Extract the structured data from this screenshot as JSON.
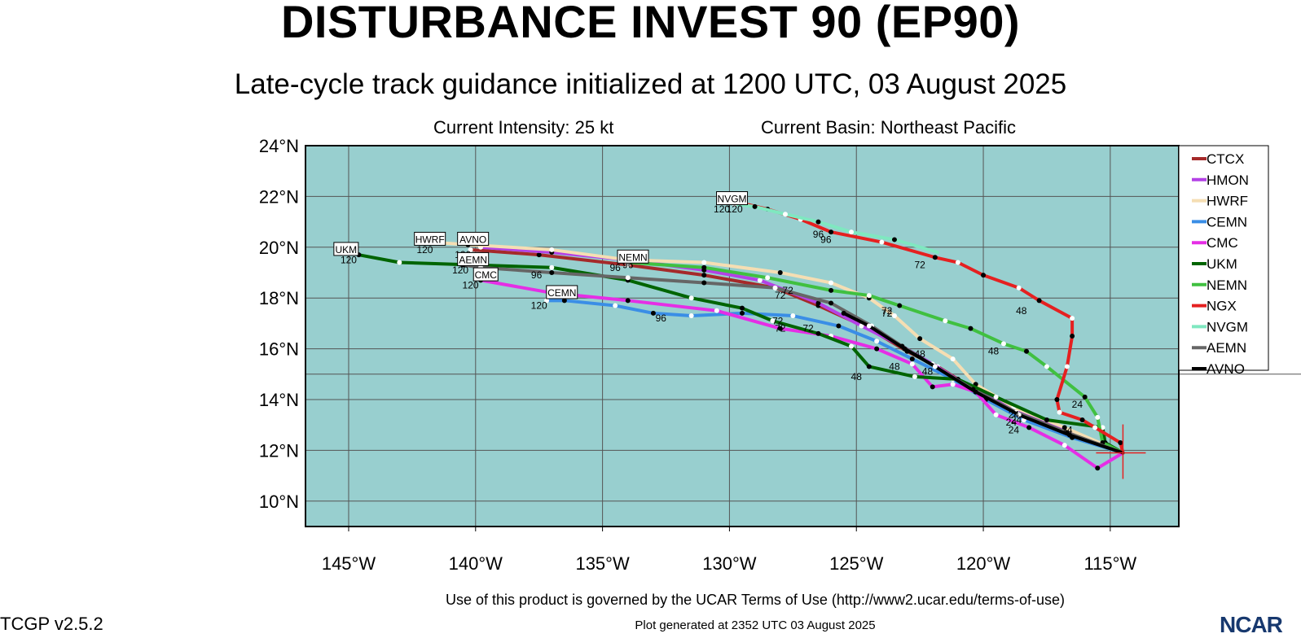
{
  "header": {
    "title": "DISTURBANCE INVEST 90 (EP90)",
    "subtitle": "Late-cycle track guidance initialized at 1200 UTC, 03 August 2025",
    "intensity": "Current Intensity: 25 kt",
    "basin": "Current Basin: Northeast Pacific"
  },
  "footer": {
    "terms": "Use of this product is governed by the UCAR Terms of Use (http://www2.ucar.edu/terms-of-use)",
    "generated": "Plot generated at 2352 UTC   03 August 2025",
    "version": "TCGP v2.5.2",
    "logo": "NCAR"
  },
  "colors": {
    "ocean": "#98cfcf",
    "grid": "#555555"
  },
  "chart_data": {
    "type": "line",
    "xlim": [
      -146.7,
      -112.3
    ],
    "ylim": [
      9,
      24
    ],
    "lon_ticks": [
      {
        "v": -145,
        "label": "145°W"
      },
      {
        "v": -140,
        "label": "140°W"
      },
      {
        "v": -135,
        "label": "135°W"
      },
      {
        "v": -130,
        "label": "130°W"
      },
      {
        "v": -125,
        "label": "125°W"
      },
      {
        "v": -120,
        "label": "120°W"
      },
      {
        "v": -115,
        "label": "115°W"
      }
    ],
    "lat_ticks": [
      {
        "v": 10,
        "label": "10°N"
      },
      {
        "v": 12,
        "label": "12°N"
      },
      {
        "v": 14,
        "label": "14°N"
      },
      {
        "v": 16,
        "label": "16°N"
      },
      {
        "v": 18,
        "label": "18°N"
      },
      {
        "v": 20,
        "label": "20°N"
      },
      {
        "v": 22,
        "label": "22°N"
      },
      {
        "v": 24,
        "label": "24°N"
      }
    ],
    "grid": {
      "lon": [
        -145,
        -140,
        -135,
        -130,
        -125,
        -120,
        -115
      ],
      "lat": [
        10,
        12,
        14,
        16,
        18,
        20,
        22,
        24
      ]
    },
    "extra_lat_line": 15,
    "legend_position": "right",
    "initial_position": {
      "lon": -114.5,
      "lat": 11.9
    },
    "series": [
      {
        "name": "CTCX",
        "color": "#a52a2a",
        "track": [
          [
            -114.5,
            11.9
          ],
          [
            -116.5,
            12.6
          ],
          [
            -118.5,
            13.4
          ],
          [
            -120.2,
            14.3
          ],
          [
            -121.8,
            15.3
          ],
          [
            -123,
            15.9
          ],
          [
            -124.5,
            16.8
          ],
          [
            -126.5,
            17.7
          ],
          [
            -128.2,
            18.4
          ],
          [
            -131,
            18.9
          ],
          [
            -134,
            19.3
          ],
          [
            -137.5,
            19.7
          ],
          [
            -140.2,
            19.9
          ]
        ],
        "labels": [
          {
            "t": "24",
            "lon": -118.7,
            "lat": 13.2
          },
          {
            "t": "48",
            "lon": -122.5,
            "lat": 15.8
          },
          {
            "t": "72",
            "lon": -127.7,
            "lat": 18.3
          },
          {
            "t": "96",
            "lon": -134.5,
            "lat": 19.2
          },
          {
            "t": "120",
            "lon": -140.5,
            "lat": 19.7
          }
        ]
      },
      {
        "name": "HMON",
        "color": "#b441e6",
        "track": [
          [
            -114.5,
            11.9
          ],
          [
            -116.8,
            12.8
          ],
          [
            -118.7,
            13.6
          ],
          [
            -120.4,
            14.4
          ],
          [
            -122,
            15.4
          ],
          [
            -123.2,
            16.1
          ],
          [
            -124.8,
            16.9
          ],
          [
            -126.5,
            17.8
          ],
          [
            -128.8,
            18.7
          ],
          [
            -131,
            19.1
          ],
          [
            -134,
            19.5
          ],
          [
            -137,
            19.8
          ],
          [
            -139.8,
            20
          ]
        ],
        "labels": [
          {
            "t": "24",
            "lon": -118.8,
            "lat": 13.4
          },
          {
            "t": "72",
            "lon": -128,
            "lat": 18.1
          },
          {
            "t": "96",
            "lon": -134,
            "lat": 19.3
          }
        ]
      },
      {
        "name": "HWRF",
        "color": "#f5deb3",
        "track": [
          [
            -114.5,
            11.9
          ],
          [
            -116.8,
            12.9
          ],
          [
            -118.8,
            13.7
          ],
          [
            -120.3,
            14.6
          ],
          [
            -121.2,
            15.6
          ],
          [
            -122.5,
            16.4
          ],
          [
            -123.5,
            17.3
          ],
          [
            -124.5,
            18
          ],
          [
            -126,
            18.6
          ],
          [
            -128,
            19
          ],
          [
            -131,
            19.4
          ],
          [
            -134,
            19.5
          ],
          [
            -137,
            19.9
          ],
          [
            -140.3,
            20.1
          ],
          [
            -141.8,
            20.2
          ]
        ],
        "labels": [
          {
            "t": "72",
            "lon": -123.8,
            "lat": 17.5
          },
          {
            "t": "120",
            "lon": -142,
            "lat": 19.9
          }
        ],
        "tag": {
          "t": "HWRF",
          "lon": -141.8,
          "lat": 20.3
        }
      },
      {
        "name": "CEMN",
        "color": "#3a8ee6",
        "track": [
          [
            -114.5,
            11.9
          ],
          [
            -116.5,
            12.5
          ],
          [
            -118.4,
            13.2
          ],
          [
            -119.9,
            14
          ],
          [
            -121.2,
            14.8
          ],
          [
            -122.8,
            15.6
          ],
          [
            -124.2,
            16.3
          ],
          [
            -125.7,
            16.9
          ],
          [
            -127.5,
            17.3
          ],
          [
            -129.5,
            17.4
          ],
          [
            -131.5,
            17.3
          ],
          [
            -133,
            17.4
          ],
          [
            -134.5,
            17.7
          ],
          [
            -136.5,
            17.9
          ],
          [
            -137.2,
            17.9
          ]
        ],
        "labels": [
          {
            "t": "24",
            "lon": -118.9,
            "lat": 13.1
          },
          {
            "t": "48",
            "lon": -123.5,
            "lat": 15.3
          },
          {
            "t": "72",
            "lon": -128.1,
            "lat": 17.1
          },
          {
            "t": "96",
            "lon": -132.7,
            "lat": 17.2
          },
          {
            "t": "120",
            "lon": -137.5,
            "lat": 17.7
          }
        ],
        "tag": {
          "t": "CEMN",
          "lon": -136.6,
          "lat": 18.2
        }
      },
      {
        "name": "CMC",
        "color": "#e52ee5",
        "track": [
          [
            -114.5,
            11.9
          ],
          [
            -115.5,
            11.3
          ],
          [
            -116.8,
            12.2
          ],
          [
            -118.2,
            12.9
          ],
          [
            -119.5,
            13.4
          ],
          [
            -120.3,
            14.3
          ],
          [
            -121.2,
            14.6
          ],
          [
            -122,
            14.5
          ],
          [
            -122.8,
            15.4
          ],
          [
            -124.2,
            16
          ],
          [
            -126,
            16.5
          ],
          [
            -128,
            16.8
          ],
          [
            -130.5,
            17.5
          ],
          [
            -134,
            17.9
          ],
          [
            -137,
            18.2
          ],
          [
            -139.8,
            18.7
          ]
        ],
        "labels": [
          {
            "t": "24",
            "lon": -118.8,
            "lat": 12.8
          },
          {
            "t": "48",
            "lon": -122.2,
            "lat": 15.1
          },
          {
            "t": "72",
            "lon": -126.9,
            "lat": 16.8
          },
          {
            "t": "120",
            "lon": -140.2,
            "lat": 18.5
          }
        ],
        "tag": {
          "t": "CMC",
          "lon": -139.6,
          "lat": 18.9
        }
      },
      {
        "name": "UKM",
        "color": "#006400",
        "track": [
          [
            -114.5,
            11.9
          ],
          [
            -115.2,
            12.3
          ],
          [
            -115.3,
            12.9
          ],
          [
            -117.5,
            13.2
          ],
          [
            -119.5,
            14.1
          ],
          [
            -121,
            14.8
          ],
          [
            -122.7,
            14.9
          ],
          [
            -124.5,
            15.3
          ],
          [
            -125.2,
            16.1
          ],
          [
            -126.5,
            16.6
          ],
          [
            -128.3,
            17.1
          ],
          [
            -129.5,
            17.6
          ],
          [
            -131.5,
            18
          ],
          [
            -134,
            18.7
          ],
          [
            -137,
            19.2
          ],
          [
            -140,
            19.3
          ],
          [
            -143,
            19.4
          ],
          [
            -144.6,
            19.7
          ]
        ],
        "labels": [
          {
            "t": "48",
            "lon": -125,
            "lat": 14.9
          },
          {
            "t": "72",
            "lon": -128,
            "lat": 16.8
          },
          {
            "t": "120",
            "lon": -145,
            "lat": 19.5
          }
        ],
        "tag": {
          "t": "UKM",
          "lon": -145.1,
          "lat": 19.9
        }
      },
      {
        "name": "NEMN",
        "color": "#40c040",
        "track": [
          [
            -114.5,
            11.9
          ],
          [
            -115.3,
            12.3
          ],
          [
            -115.5,
            13.3
          ],
          [
            -116,
            14.1
          ],
          [
            -117.5,
            15.3
          ],
          [
            -118.3,
            15.9
          ],
          [
            -119.2,
            16.2
          ],
          [
            -120.5,
            16.8
          ],
          [
            -121.5,
            17.1
          ],
          [
            -123.3,
            17.7
          ],
          [
            -124.5,
            18.1
          ],
          [
            -126,
            18.3
          ],
          [
            -128.5,
            18.8
          ],
          [
            -131,
            19.2
          ],
          [
            -134,
            19.4
          ]
        ],
        "labels": [
          {
            "t": "24",
            "lon": -116.3,
            "lat": 13.8
          },
          {
            "t": "48",
            "lon": -119.6,
            "lat": 15.9
          },
          {
            "t": "72",
            "lon": -123.8,
            "lat": 17.4
          }
        ],
        "tag": {
          "t": "NEMN",
          "lon": -133.8,
          "lat": 19.6
        }
      },
      {
        "name": "NGX",
        "color": "#e52020",
        "track": [
          [
            -114.5,
            11.9
          ],
          [
            -114.6,
            12.3
          ],
          [
            -115.6,
            12.9
          ],
          [
            -116.1,
            13.2
          ],
          [
            -117,
            13.5
          ],
          [
            -117.1,
            14
          ],
          [
            -116.7,
            15.3
          ],
          [
            -116.5,
            16.5
          ],
          [
            -116.5,
            17.2
          ],
          [
            -117.8,
            17.9
          ],
          [
            -118.6,
            18.4
          ],
          [
            -120,
            18.9
          ],
          [
            -121,
            19.4
          ],
          [
            -121.9,
            19.6
          ],
          [
            -124,
            20.2
          ],
          [
            -126,
            20.6
          ],
          [
            -127.2,
            21.1
          ],
          [
            -128.5,
            21.5
          ],
          [
            -129.8,
            21.8
          ]
        ],
        "labels": [
          {
            "t": "24",
            "lon": -116.7,
            "lat": 12.8
          },
          {
            "t": "48",
            "lon": -118.5,
            "lat": 17.5
          },
          {
            "t": "72",
            "lon": -122.5,
            "lat": 19.3
          },
          {
            "t": "96",
            "lon": -126.2,
            "lat": 20.3
          },
          {
            "t": "120",
            "lon": -130.3,
            "lat": 21.5
          }
        ]
      },
      {
        "name": "NVGM",
        "color": "#7fe8c0",
        "track": [
          [
            -121.8,
            19.8
          ],
          [
            -123.5,
            20.3
          ],
          [
            -125.2,
            20.6
          ],
          [
            -126.5,
            21
          ],
          [
            -127.8,
            21.3
          ],
          [
            -129,
            21.6
          ],
          [
            -129.8,
            21.7
          ]
        ],
        "labels": [
          {
            "t": "96",
            "lon": -126.5,
            "lat": 20.5
          },
          {
            "t": "120",
            "lon": -129.8,
            "lat": 21.5
          }
        ],
        "tag": {
          "t": "NVGM",
          "lon": -129.9,
          "lat": 21.9
        }
      },
      {
        "name": "AEMN",
        "color": "#666666",
        "track": [
          [
            -114.5,
            11.9
          ],
          [
            -116.7,
            12.7
          ],
          [
            -118.7,
            13.5
          ],
          [
            -120.4,
            14.4
          ],
          [
            -121.9,
            15.3
          ],
          [
            -123.2,
            16.1
          ],
          [
            -124.4,
            16.9
          ],
          [
            -126,
            17.8
          ],
          [
            -128.2,
            18.4
          ],
          [
            -131,
            18.6
          ],
          [
            -134,
            18.8
          ],
          [
            -137,
            19
          ],
          [
            -139.8,
            19.2
          ],
          [
            -140.5,
            19.3
          ]
        ],
        "labels": [
          {
            "t": "96",
            "lon": -137.6,
            "lat": 18.9
          },
          {
            "t": "120",
            "lon": -140.6,
            "lat": 19.1
          }
        ],
        "tag": {
          "t": "AEMN",
          "lon": -140.1,
          "lat": 19.5
        }
      },
      {
        "name": "AVNO",
        "color": "#000000",
        "track": [
          [
            -114.5,
            11.9
          ],
          [
            -116.6,
            12.6
          ],
          [
            -118.6,
            13.4
          ],
          [
            -120.3,
            14.3
          ],
          [
            -121.9,
            15.3
          ],
          [
            -123.1,
            16
          ],
          [
            -124.5,
            16.9
          ],
          [
            -125.5,
            17.4
          ]
        ],
        "labels": [],
        "tag": {
          "t": "AVNO",
          "lon": -140.1,
          "lat": 20.3
        }
      }
    ]
  }
}
